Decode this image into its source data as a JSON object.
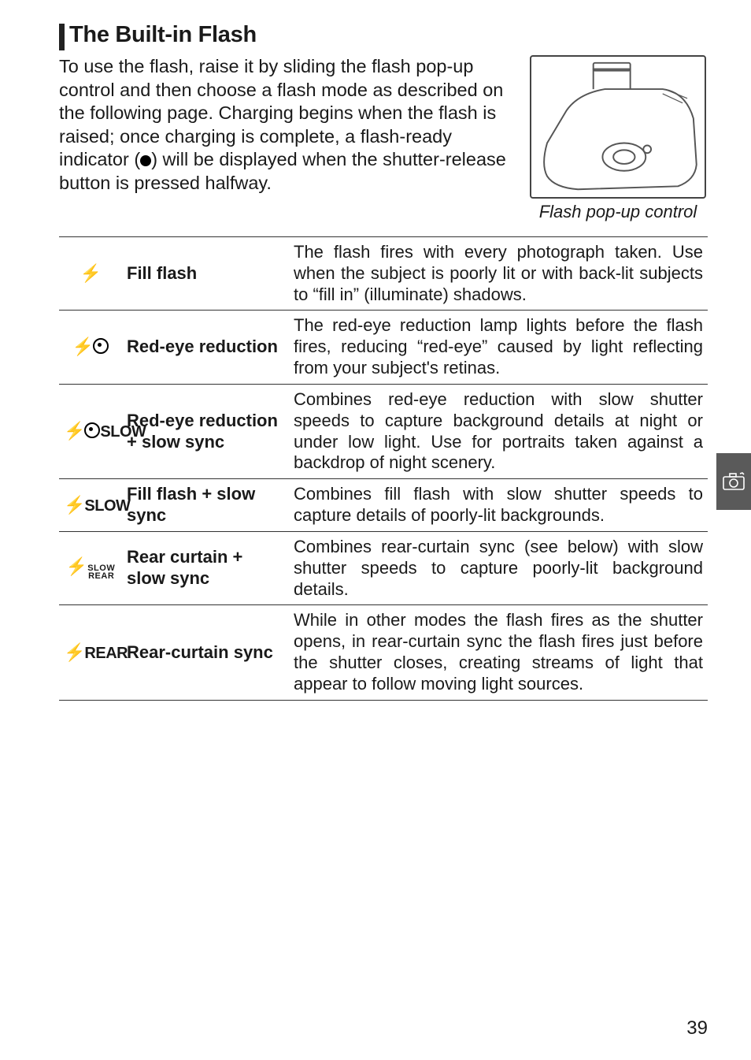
{
  "heading": "The Built-in Flash",
  "intro": "To use the flash, raise it by sliding the flash pop-up control and then choose a flash mode as described on the following page. Charging begins when the flash is raised; once charging is complete, a flash-ready indicator (",
  "intro2": ") will be displayed when  the  shutter-release  button  is pressed halfway.",
  "caption": "Flash pop-up control",
  "rows": [
    {
      "iconType": "flash",
      "label": "Fill flash",
      "desc": "The flash fires with every photograph taken. Use when the subject is poorly lit or with back-lit subjects to “fill in” (illuminate) shadows."
    },
    {
      "iconType": "flash-eye",
      "label": "Red-eye reduction",
      "desc": "The red-eye reduction lamp lights before the flash fires, reducing “red-eye” caused by light reflecting from your subject's retinas."
    },
    {
      "iconType": "flash-eye-slow",
      "label": "Red-eye reduction + slow sync",
      "desc": "Combines red-eye reduction with slow shutter speeds to capture background details at night or under low light. Use for portraits taken against a backdrop of night scenery."
    },
    {
      "iconType": "flash-slow",
      "label": "Fill flash + slow sync",
      "desc": "Combines fill flash with slow shutter speeds to capture details of poorly-lit backgrounds."
    },
    {
      "iconType": "flash-slow-rear",
      "label": "Rear curtain + slow sync",
      "desc": "Combines rear-curtain sync (see below) with slow shutter speeds to capture poorly-lit background details."
    },
    {
      "iconType": "flash-rear",
      "label": "Rear-curtain sync",
      "desc": "While in other modes the flash fires as the shutter opens, in rear-curtain sync the flash fires just before the shutter closes, creating streams of light that appear to follow moving light sources."
    }
  ],
  "pageNumber": "39",
  "icons": {
    "flash": "⚡",
    "slowWord": "SLOW",
    "rearWord": "REAR",
    "slowStackTop": "SLOW",
    "slowStackBottom": "REAR"
  }
}
